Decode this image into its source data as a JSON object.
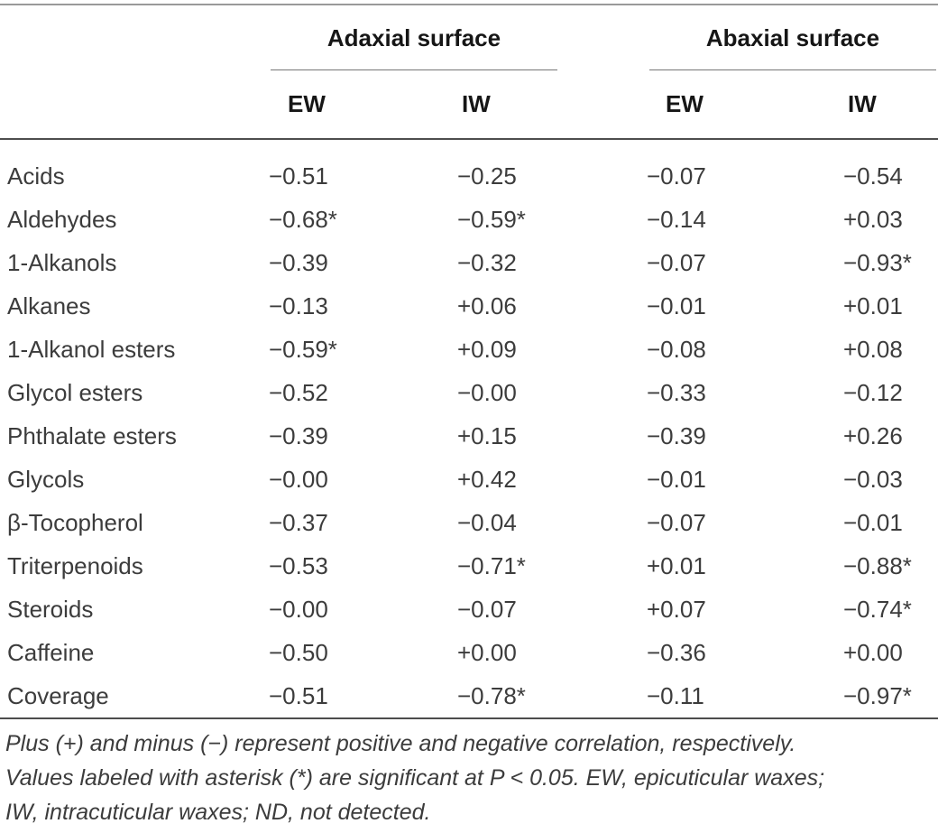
{
  "table": {
    "groups": [
      {
        "label": "Adaxial surface"
      },
      {
        "label": "Abaxial surface"
      }
    ],
    "sub_headers": [
      "EW",
      "IW",
      "EW",
      "IW"
    ],
    "rows": [
      {
        "label": "Acids",
        "values": [
          "−0.51",
          "−0.25",
          "−0.07",
          "−0.54"
        ]
      },
      {
        "label": "Aldehydes",
        "values": [
          "−0.68*",
          "−0.59*",
          "−0.14",
          "+0.03"
        ]
      },
      {
        "label": "1-Alkanols",
        "values": [
          "−0.39",
          "−0.32",
          "−0.07",
          "−0.93*"
        ]
      },
      {
        "label": "Alkanes",
        "values": [
          "−0.13",
          "+0.06",
          "−0.01",
          "+0.01"
        ]
      },
      {
        "label": "1-Alkanol esters",
        "values": [
          "−0.59*",
          "+0.09",
          "−0.08",
          "+0.08"
        ]
      },
      {
        "label": "Glycol esters",
        "values": [
          "−0.52",
          "−0.00",
          "−0.33",
          "−0.12"
        ]
      },
      {
        "label": "Phthalate esters",
        "values": [
          "−0.39",
          "+0.15",
          "−0.39",
          "+0.26"
        ]
      },
      {
        "label": "Glycols",
        "values": [
          "−0.00",
          "+0.42",
          "−0.01",
          "−0.03"
        ]
      },
      {
        "label": "β-Tocopherol",
        "values": [
          "−0.37",
          "−0.04",
          "−0.07",
          "−0.01"
        ]
      },
      {
        "label": "Triterpenoids",
        "values": [
          "−0.53",
          "−0.71*",
          "+0.01",
          "−0.88*"
        ]
      },
      {
        "label": "Steroids",
        "values": [
          "−0.00",
          "−0.07",
          "+0.07",
          "−0.74*"
        ]
      },
      {
        "label": "Caffeine",
        "values": [
          "−0.50",
          "+0.00",
          "−0.36",
          "+0.00"
        ]
      },
      {
        "label": "Coverage",
        "values": [
          "−0.51",
          "−0.78*",
          "−0.11",
          "−0.97*"
        ]
      }
    ],
    "footnote_lines": [
      "Plus (+) and minus (−) represent positive and negative correlation, respectively.",
      "Values labeled with asterisk (*) are significant at P < 0.05. EW, epicuticular waxes;",
      "IW, intracuticular waxes; ND, not detected."
    ]
  }
}
